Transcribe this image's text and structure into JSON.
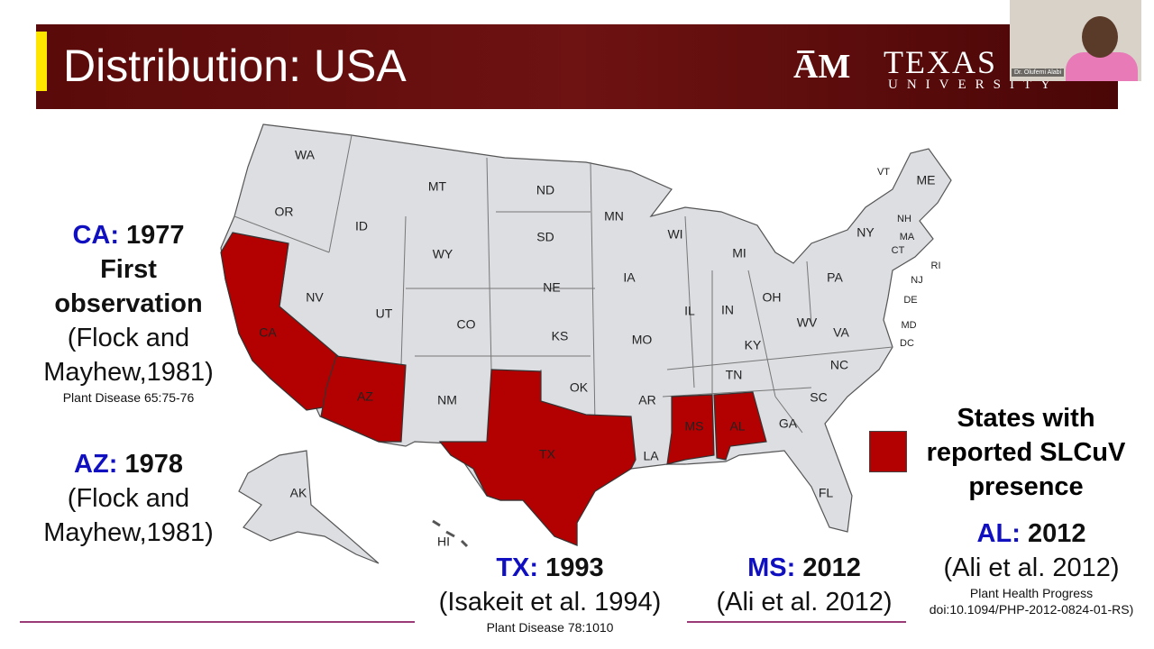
{
  "header": {
    "title": "Distribution: USA",
    "logo_word": "TEXAS",
    "logo_sub": "UNIVERSITY"
  },
  "webcam": {
    "name": "Dr. Olufemi Alabi"
  },
  "map": {
    "highlight_color": "#b30000",
    "base_color": "#dcdee2",
    "states": [
      "WA",
      "OR",
      "CA",
      "ID",
      "NV",
      "MT",
      "WY",
      "UT",
      "AZ",
      "CO",
      "NM",
      "ND",
      "SD",
      "NE",
      "KS",
      "OK",
      "TX",
      "MN",
      "IA",
      "MO",
      "AR",
      "LA",
      "WI",
      "IL",
      "MI",
      "IN",
      "OH",
      "KY",
      "TN",
      "MS",
      "AL",
      "GA",
      "FL",
      "SC",
      "NC",
      "VA",
      "WV",
      "PA",
      "NY",
      "ME",
      "VT",
      "NH",
      "MA",
      "CT",
      "RI",
      "NJ",
      "DE",
      "MD",
      "DC",
      "AK",
      "HI"
    ],
    "highlighted": [
      "CA",
      "AZ",
      "TX",
      "MS",
      "AL"
    ]
  },
  "legend": {
    "label": "States with reported SLCuV presence"
  },
  "annotations": {
    "ca": {
      "state": "CA:",
      "year": "1977",
      "lines": [
        "First",
        "observation",
        "(Flock and",
        "Mayhew,1981)"
      ],
      "ref": "Plant Disease 65:75-76"
    },
    "az": {
      "state": "AZ:",
      "year": "1978",
      "lines": [
        "(Flock and",
        "Mayhew,1981)"
      ]
    },
    "tx": {
      "state": "TX:",
      "year": "1993",
      "lines": [
        "(Isakeit et al. 1994)"
      ],
      "ref": "Plant Disease 78:1010"
    },
    "ms": {
      "state": "MS:",
      "year": "2012",
      "lines": [
        "(Ali et al. 2012)"
      ]
    },
    "al": {
      "state": "AL:",
      "year": "2012",
      "lines": [
        "(Ali et al. 2012)"
      ],
      "ref": "Plant Health Progress doi:10.1094/PHP-2012-0824-01-RS)"
    }
  }
}
